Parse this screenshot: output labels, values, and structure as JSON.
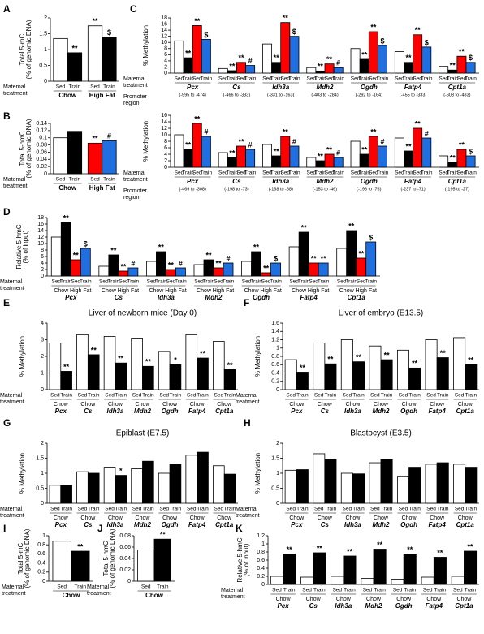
{
  "chart_data": [
    {
      "type": "bar",
      "panel": "A",
      "y_label": [
        "Total 5-mC",
        "(% of genomic DNA)"
      ],
      "row_label": [
        "Maternal",
        "treatment"
      ],
      "ylim": [
        0,
        2
      ],
      "yticks": [
        0,
        0.5,
        1,
        1.5,
        2
      ],
      "bar_labels": [
        "Sed",
        "Train"
      ],
      "groups": [
        "Chow",
        "High Fat"
      ],
      "colors": [
        "#ffffff",
        "#000000"
      ],
      "values": [
        [
          1.35,
          0.9
        ],
        [
          1.75,
          1.4
        ]
      ],
      "sig": [
        [
          null,
          "**"
        ],
        [
          "**",
          "$"
        ]
      ]
    },
    {
      "type": "bar",
      "panel": "B",
      "y_label": [
        "Total 5-hmC",
        "(% of genomic DNA)"
      ],
      "row_label": [
        "Maternal",
        "treatment"
      ],
      "ylim": [
        0,
        0.14
      ],
      "yticks": [
        0,
        0.02,
        0.04,
        0.06,
        0.08,
        0.1,
        0.12,
        0.14
      ],
      "bar_labels": [
        "Sed",
        "Train"
      ],
      "groups": [
        "Chow",
        "High Fat"
      ],
      "colors": [
        "#ffffff",
        "#000000"
      ],
      "group_colors": [
        [
          "#ffffff",
          "#000000"
        ],
        [
          "#ff0000",
          "#1f6fe0"
        ]
      ],
      "values": [
        [
          0.1,
          0.118
        ],
        [
          0.085,
          0.092
        ]
      ],
      "sig": [
        [
          null,
          null
        ],
        [
          "**",
          "#"
        ]
      ]
    },
    {
      "type": "bar",
      "panel": "C",
      "y_label": [
        "% Methylation"
      ],
      "row_label": [
        "Maternal",
        "treatment"
      ],
      "region_label": [
        "Promoter",
        "region"
      ],
      "ylim": [
        0,
        18
      ],
      "yticks": [
        0,
        2,
        4,
        6,
        8,
        10,
        12,
        14,
        16,
        18
      ],
      "bar_labels": [
        "Sed",
        "Train",
        "Sed",
        "Train"
      ],
      "groups": [
        "Pcx",
        "Cs",
        "Idh3a",
        "Mdh2",
        "Ogdh",
        "Fatp4",
        "Cpt1a"
      ],
      "regions": [
        "(-595 to -474)",
        "(-466 to -333)",
        "(-331 to -163)",
        "(-403 to -284)",
        "(-292 to -164)",
        "(-455 to -333)",
        "(-603 to -483)"
      ],
      "colors": [
        "#ffffff",
        "#000000",
        "#ff0000",
        "#1f6fe0"
      ],
      "values": [
        [
          10.5,
          5,
          15.5,
          11
        ],
        [
          1.5,
          0.8,
          3.5,
          2.5
        ],
        [
          9.5,
          3.5,
          16.5,
          12
        ],
        [
          1.8,
          0.7,
          3,
          1.8
        ],
        [
          8,
          4.5,
          13.5,
          9
        ],
        [
          7,
          3.5,
          12.5,
          8.5
        ],
        [
          2.2,
          1,
          5.5,
          3.5
        ]
      ],
      "sig": [
        [
          null,
          "**",
          "**",
          "$"
        ],
        [
          null,
          "**",
          "**",
          "#"
        ],
        [
          null,
          "**",
          "**",
          "$"
        ],
        [
          null,
          "**",
          "**",
          "#"
        ],
        [
          null,
          "**",
          "**",
          "$"
        ],
        [
          null,
          "**",
          "**",
          "$"
        ],
        [
          null,
          "**",
          "**",
          "$"
        ]
      ]
    },
    {
      "type": "bar",
      "y_label": [
        "% Methylation"
      ],
      "row_label": [
        "Maternal",
        "treatment"
      ],
      "region_label": [
        "Promoter",
        "region"
      ],
      "ylim": [
        0,
        16
      ],
      "yticks": [
        0,
        2,
        4,
        6,
        8,
        10,
        12,
        14,
        16
      ],
      "bar_labels": [
        "Sed",
        "Train",
        "Sed",
        "Train"
      ],
      "groups": [
        "Pcx",
        "Cs",
        "Idh3a",
        "Mdh2",
        "Ogdh",
        "Fatp4",
        "Cpt1a"
      ],
      "regions": [
        "(-469 to -308)",
        "(-198 to -73)",
        "(-168 to -68)",
        "(-153 to -46)",
        "(-198 to -76)",
        "(-237 to -71)",
        "(-195 to -27)"
      ],
      "colors": [
        "#ffffff",
        "#000000",
        "#ff0000",
        "#1f6fe0"
      ],
      "values": [
        [
          10,
          5.5,
          13.5,
          9.5
        ],
        [
          4.5,
          3,
          6.5,
          5.5
        ],
        [
          7,
          3.5,
          9.5,
          6.5
        ],
        [
          3,
          2,
          4,
          3
        ],
        [
          8,
          4,
          9.5,
          6.5
        ],
        [
          9,
          5,
          12,
          9
        ],
        [
          3.5,
          1.5,
          5.5,
          3.5
        ]
      ],
      "sig": [
        [
          null,
          "**",
          "**",
          "#"
        ],
        [
          null,
          "**",
          "**",
          "#"
        ],
        [
          null,
          "**",
          "**",
          "#"
        ],
        [
          null,
          "**",
          "**",
          "#"
        ],
        [
          null,
          "**",
          "**",
          "#"
        ],
        [
          null,
          "**",
          "**",
          "#"
        ],
        [
          null,
          "**",
          "**",
          "$"
        ]
      ]
    },
    {
      "type": "bar",
      "panel": "D",
      "y_label": [
        "Relative 5-hmC",
        "(% of input)"
      ],
      "row_label": [
        "Maternal",
        "treatment"
      ],
      "ylim": [
        0,
        18
      ],
      "yticks": [
        0,
        2,
        4,
        6,
        8,
        10,
        12,
        14,
        16,
        18
      ],
      "bar_labels": [
        "Sed",
        "Train",
        "Sed",
        "Train"
      ],
      "diets": [
        "Chow",
        "High Fat"
      ],
      "groups": [
        "Pcx",
        "Cs",
        "Idh3a",
        "Mdh2",
        "Ogdh",
        "Fatp4",
        "Cpt1a"
      ],
      "colors": [
        "#ffffff",
        "#000000",
        "#ff0000",
        "#1f6fe0"
      ],
      "values": [
        [
          12,
          16.5,
          5,
          8.5
        ],
        [
          3,
          6.5,
          1.5,
          2.5
        ],
        [
          4.5,
          7.5,
          2,
          2.5
        ],
        [
          3.5,
          5,
          2.5,
          4
        ],
        [
          4.5,
          7.5,
          1,
          4
        ],
        [
          9,
          13.5,
          4,
          4
        ],
        [
          8.5,
          14,
          5.5,
          10.5
        ]
      ],
      "sig": [
        [
          null,
          "**",
          "**",
          "$"
        ],
        [
          null,
          "**",
          "**",
          "#"
        ],
        [
          null,
          "**",
          "**",
          "#"
        ],
        [
          null,
          "**",
          "**",
          "#"
        ],
        [
          null,
          "**",
          "**",
          "$"
        ],
        [
          null,
          "**",
          "**",
          "**"
        ],
        [
          null,
          "**",
          "**",
          "$"
        ]
      ]
    },
    {
      "type": "bar",
      "panel": "E",
      "title": "Liver of newborn mice (Day 0)",
      "y_label": [
        "% Methylation"
      ],
      "row_label": [
        "Maternal",
        "treatment"
      ],
      "ylim": [
        0,
        4
      ],
      "yticks": [
        0,
        1,
        2,
        3,
        4
      ],
      "bar_labels": [
        "Sed",
        "Train"
      ],
      "diets": [
        "Chow"
      ],
      "groups": [
        "Pcx",
        "Cs",
        "Idh3a",
        "Mdh2",
        "Ogdh",
        "Fatp4",
        "Cpt1a"
      ],
      "colors": [
        "#ffffff",
        "#000000"
      ],
      "values": [
        [
          2.8,
          1.1
        ],
        [
          3.3,
          2.1
        ],
        [
          3.2,
          1.6
        ],
        [
          3.1,
          1.4
        ],
        [
          2.3,
          1.5
        ],
        [
          3.3,
          1.9
        ],
        [
          2.9,
          1.2
        ]
      ],
      "sig": [
        [
          null,
          "**"
        ],
        [
          null,
          "**"
        ],
        [
          null,
          "**"
        ],
        [
          null,
          "**"
        ],
        [
          null,
          "*"
        ],
        [
          null,
          "**"
        ],
        [
          null,
          "**"
        ]
      ]
    },
    {
      "type": "bar",
      "panel": "F",
      "title": "Liver of embryo (E13.5)",
      "y_label": [
        "% Methylation"
      ],
      "row_label": [
        "Maternal",
        "treatment"
      ],
      "ylim": [
        0,
        1.6
      ],
      "yticks": [
        0,
        0.2,
        0.4,
        0.6,
        0.8,
        1,
        1.2,
        1.4,
        1.6
      ],
      "bar_labels": [
        "Sed",
        "Train"
      ],
      "diets": [
        "Chow"
      ],
      "groups": [
        "Pcx",
        "Cs",
        "Idh3a",
        "Mdh2",
        "Ogdh",
        "Fatp4",
        "Cpt1a"
      ],
      "colors": [
        "#ffffff",
        "#000000"
      ],
      "values": [
        [
          0.72,
          0.42
        ],
        [
          1.12,
          0.62
        ],
        [
          1.2,
          0.67
        ],
        [
          1.05,
          0.72
        ],
        [
          0.95,
          0.52
        ],
        [
          1.2,
          0.77
        ],
        [
          1.25,
          0.6
        ]
      ],
      "sig": [
        [
          null,
          "**"
        ],
        [
          null,
          "**"
        ],
        [
          null,
          "**"
        ],
        [
          null,
          "**"
        ],
        [
          null,
          "**"
        ],
        [
          null,
          "**"
        ],
        [
          null,
          "**"
        ]
      ]
    },
    {
      "type": "bar",
      "panel": "G",
      "title": "Epiblast (E7.5)",
      "y_label": [
        "% Methylation"
      ],
      "row_label": [
        "Maternal",
        "treatment"
      ],
      "ylim": [
        0,
        2
      ],
      "yticks": [
        0,
        0.5,
        1,
        1.5,
        2
      ],
      "bar_labels": [
        "Sed",
        "Train"
      ],
      "diets": [
        "Chow"
      ],
      "groups": [
        "Pcx",
        "Cs",
        "Idh3a",
        "Mdh2",
        "Ogdh",
        "Fatp4",
        "Cpt1a"
      ],
      "colors": [
        "#ffffff",
        "#000000"
      ],
      "values": [
        [
          0.6,
          0.6
        ],
        [
          1.05,
          1
        ],
        [
          1.2,
          0.93
        ],
        [
          1.15,
          1.4
        ],
        [
          1,
          1.3
        ],
        [
          1.6,
          1.7
        ],
        [
          1.25,
          0.97
        ]
      ],
      "sig": [
        [
          null,
          null
        ],
        [
          null,
          null
        ],
        [
          null,
          "*"
        ],
        [
          null,
          null
        ],
        [
          null,
          null
        ],
        [
          null,
          null
        ],
        [
          null,
          null
        ]
      ]
    },
    {
      "type": "bar",
      "panel": "H",
      "title": "Blastocyst (E3.5)",
      "y_label": [
        "% Methylation"
      ],
      "row_label": [
        "Maternal",
        "treatment"
      ],
      "ylim": [
        0,
        2
      ],
      "yticks": [
        0,
        0.5,
        1,
        1.5,
        2
      ],
      "bar_labels": [
        "Sed",
        "Train"
      ],
      "diets": [
        "Chow"
      ],
      "groups": [
        "Pcx",
        "Cs",
        "Idh3a",
        "Mdh2",
        "Ogdh",
        "Fatp4",
        "Cpt1a"
      ],
      "colors": [
        "#ffffff",
        "#000000"
      ],
      "values": [
        [
          1.1,
          1.12
        ],
        [
          1.65,
          1.45
        ],
        [
          1,
          0.98
        ],
        [
          1.35,
          1.45
        ],
        [
          0.9,
          1.2
        ],
        [
          1.3,
          1.35
        ],
        [
          1.3,
          1.2
        ]
      ],
      "sig": [
        [
          null,
          null
        ],
        [
          null,
          null
        ],
        [
          null,
          null
        ],
        [
          null,
          null
        ],
        [
          null,
          null
        ],
        [
          null,
          null
        ],
        [
          null,
          null
        ]
      ]
    },
    {
      "type": "bar",
      "panel": "I",
      "y_label": [
        "Total 5-mC",
        "(% of genomic DNA)"
      ],
      "row_label": [
        "Maternal",
        "treatment"
      ],
      "ylim": [
        0,
        1
      ],
      "yticks": [
        0,
        0.2,
        0.4,
        0.6,
        0.8,
        1
      ],
      "bar_labels": [
        "Sed",
        "Train"
      ],
      "groups": [
        "Chow"
      ],
      "colors": [
        "#ffffff",
        "#000000"
      ],
      "values": [
        [
          0.88,
          0.66
        ]
      ],
      "sig": [
        [
          null,
          "**"
        ]
      ]
    },
    {
      "type": "bar",
      "panel": "J",
      "y_label": [
        "Total 5-hmC",
        "(% of genomic DNA)"
      ],
      "row_label": [
        "Maternal",
        "treatment"
      ],
      "ylim": [
        0,
        0.08
      ],
      "yticks": [
        0,
        0.02,
        0.04,
        0.06,
        0.08
      ],
      "bar_labels": [
        "Sed",
        "Train"
      ],
      "groups": [
        "Chow"
      ],
      "colors": [
        "#ffffff",
        "#000000"
      ],
      "values": [
        [
          0.055,
          0.074
        ]
      ],
      "sig": [
        [
          null,
          "**"
        ]
      ]
    },
    {
      "type": "bar",
      "panel": "K",
      "y_label": [
        "Relative 5-hmC",
        "(% of input)"
      ],
      "row_label": [
        "Maternal",
        "treatment"
      ],
      "ylim": [
        0,
        1.2
      ],
      "yticks": [
        0,
        0.2,
        0.4,
        0.6,
        0.8,
        1,
        1.2
      ],
      "bar_labels": [
        "Sed",
        "Train"
      ],
      "diets": [
        "Chow"
      ],
      "groups": [
        "Pcx",
        "Cs",
        "Idh3a",
        "Mdh2",
        "Ogdh",
        "Fatp4",
        "Cpt1a"
      ],
      "colors": [
        "#ffffff",
        "#000000"
      ],
      "values": [
        [
          0.2,
          0.75
        ],
        [
          0.18,
          0.78
        ],
        [
          0.2,
          0.7
        ],
        [
          0.15,
          0.87
        ],
        [
          0.13,
          0.75
        ],
        [
          0.18,
          0.67
        ],
        [
          0.2,
          0.82
        ]
      ],
      "sig": [
        [
          null,
          "**"
        ],
        [
          null,
          "**"
        ],
        [
          null,
          "**"
        ],
        [
          null,
          "**"
        ],
        [
          null,
          "**"
        ],
        [
          null,
          "**"
        ],
        [
          null,
          "**"
        ]
      ]
    }
  ]
}
